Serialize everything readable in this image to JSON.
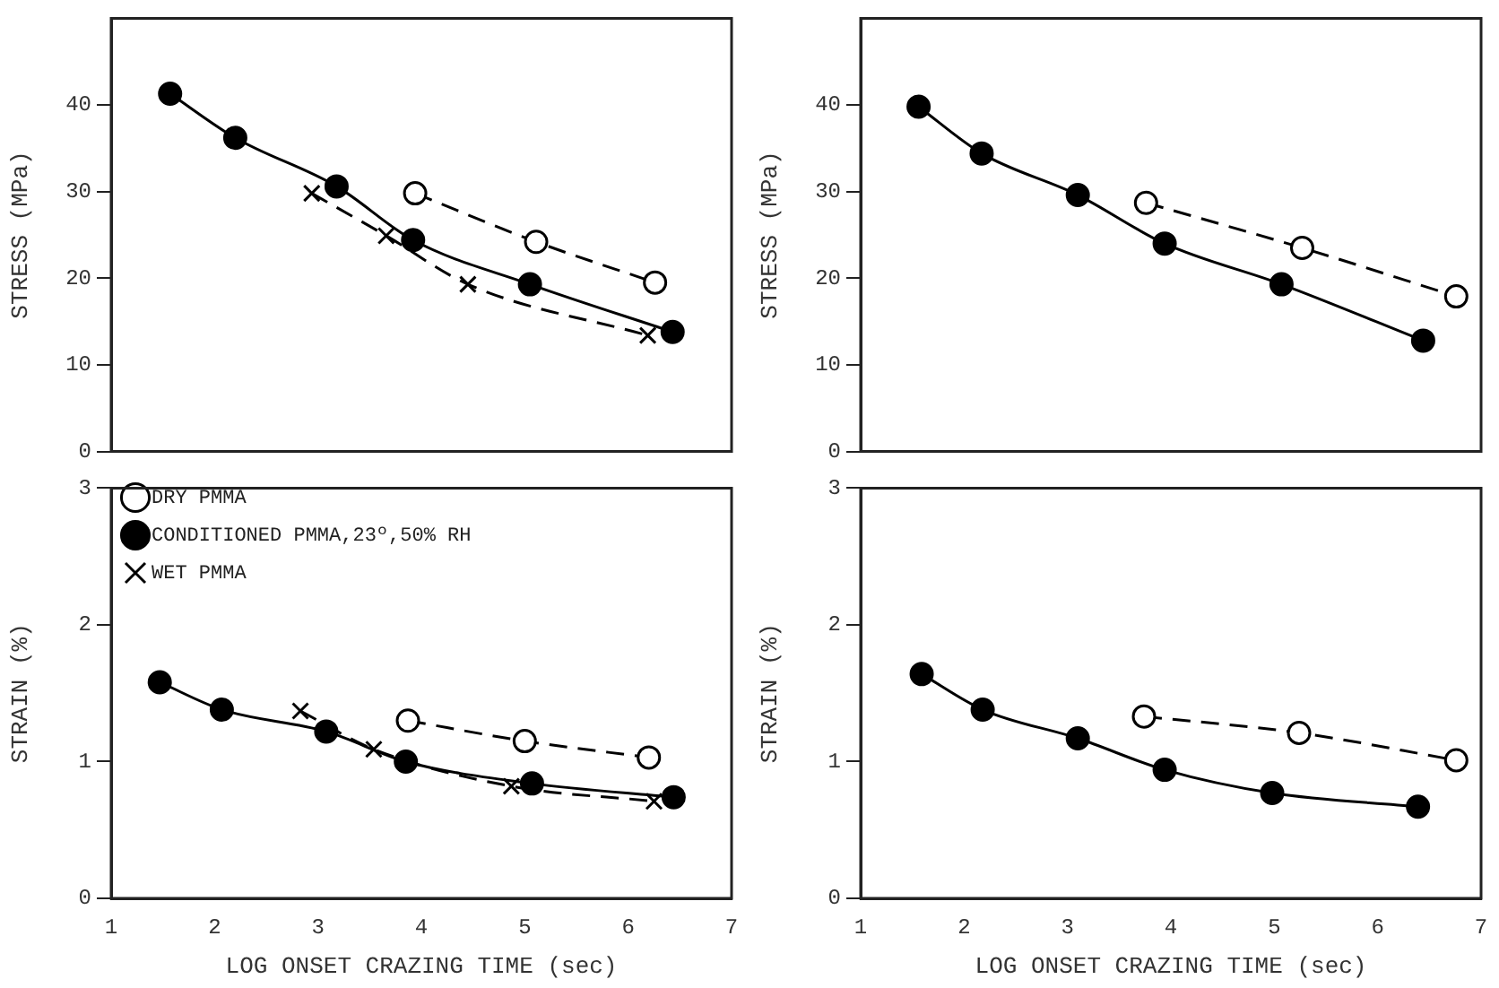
{
  "chart_data": [
    {
      "type": "line",
      "ylabel": "STRESS (MPa)",
      "xlim": [
        1,
        7
      ],
      "xticks": [
        1,
        2,
        3,
        4,
        5,
        6,
        7
      ],
      "ylim": [
        0,
        50
      ],
      "yticks": [
        0,
        10,
        20,
        30,
        40
      ],
      "tick_labels": "y",
      "legend": false,
      "grid": false,
      "series": [
        {
          "color": "#000000",
          "colors": [
            "#ffffff",
            "#ffffff",
            "#ffffff"
          ],
          "marker": "circle",
          "line_style": "dashed",
          "x": [
            3.94,
            5.11,
            6.26
          ],
          "values": [
            29.8,
            24.2,
            19.5
          ]
        },
        {
          "color": "#000000",
          "marker": "circle",
          "line_style": "solid",
          "x": [
            1.57,
            2.2,
            3.18,
            3.92,
            5.05,
            6.43
          ],
          "values": [
            41.3,
            36.2,
            30.6,
            24.4,
            19.3,
            13.8
          ]
        },
        {
          "color": "#000000",
          "marker": "cross",
          "line_style": "dashed",
          "x": [
            2.94,
            3.66,
            4.45,
            6.19
          ],
          "values": [
            29.8,
            24.9,
            19.3,
            13.4
          ]
        }
      ]
    },
    {
      "type": "line",
      "ylabel": "STRESS (MPa)",
      "xlim": [
        1,
        7
      ],
      "xticks": [
        1,
        2,
        3,
        4,
        5,
        6,
        7
      ],
      "ylim": [
        0,
        50
      ],
      "yticks": [
        0,
        10,
        20,
        30,
        40
      ],
      "tick_labels": "y",
      "legend": false,
      "grid": false,
      "series": [
        {
          "color": "#000000",
          "colors": [
            "#ffffff",
            "#ffffff",
            "#ffffff"
          ],
          "marker": "circle",
          "line_style": "dashed",
          "x": [
            3.76,
            5.27,
            6.76
          ],
          "values": [
            28.7,
            23.5,
            17.9
          ]
        },
        {
          "color": "#000000",
          "marker": "circle",
          "line_style": "solid",
          "x": [
            1.56,
            2.17,
            3.1,
            3.94,
            5.07,
            6.44
          ],
          "values": [
            39.8,
            34.4,
            29.6,
            24.0,
            19.3,
            12.8
          ]
        }
      ]
    },
    {
      "type": "line",
      "ylabel": "STRAIN (%)",
      "xlabel": "LOG ONSET CRAZING TIME (sec)",
      "xlim": [
        1,
        7
      ],
      "xticks": [
        1,
        2,
        3,
        4,
        5,
        6,
        7
      ],
      "ylim": [
        0,
        3
      ],
      "yticks": [
        0,
        1,
        2,
        3
      ],
      "legend": "top left",
      "grid": false,
      "series": [
        {
          "name": "DRY PMMA",
          "color": "#000000",
          "colors": [
            "#ffffff",
            "#ffffff",
            "#ffffff"
          ],
          "marker": "circle",
          "line_style": "dashed",
          "x": [
            3.87,
            5.0,
            6.2
          ],
          "values": [
            1.3,
            1.15,
            1.03
          ]
        },
        {
          "name": "CONDITIONED PMMA,23º,50% RH",
          "color": "#000000",
          "marker": "circle",
          "line_style": "solid",
          "x": [
            1.47,
            2.07,
            3.08,
            3.85,
            5.07,
            6.44
          ],
          "values": [
            1.58,
            1.38,
            1.22,
            1.0,
            0.84,
            0.74
          ]
        },
        {
          "name": "WET PMMA",
          "color": "#000000",
          "marker": "cross",
          "line_style": "dashed",
          "x": [
            2.83,
            3.54,
            4.87,
            6.25
          ],
          "values": [
            1.37,
            1.09,
            0.82,
            0.71
          ]
        }
      ]
    },
    {
      "type": "line",
      "ylabel": "STRAIN (%)",
      "xlabel": "LOG ONSET CRAZING TIME (sec)",
      "xlim": [
        1,
        7
      ],
      "xticks": [
        1,
        2,
        3,
        4,
        5,
        6,
        7
      ],
      "ylim": [
        0,
        3
      ],
      "yticks": [
        0,
        1,
        2,
        3
      ],
      "legend": false,
      "grid": false,
      "series": [
        {
          "color": "#000000",
          "colors": [
            "#ffffff",
            "#ffffff",
            "#ffffff"
          ],
          "marker": "circle",
          "line_style": "dashed",
          "x": [
            3.74,
            5.24,
            6.76
          ],
          "values": [
            1.33,
            1.21,
            1.01
          ]
        },
        {
          "color": "#000000",
          "marker": "circle",
          "line_style": "solid",
          "x": [
            1.59,
            2.18,
            3.1,
            3.94,
            4.98,
            6.39
          ],
          "values": [
            1.64,
            1.38,
            1.17,
            0.94,
            0.77,
            0.67
          ]
        }
      ]
    }
  ]
}
